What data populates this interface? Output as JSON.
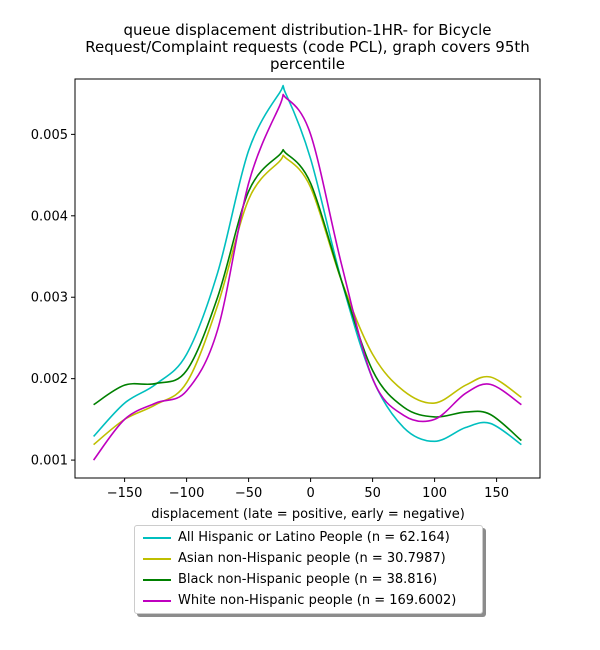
{
  "chart_data": {
    "type": "line",
    "title_lines": [
      "queue displacement distribution-1HR-  for Bicycle",
      "Request/Complaint  requests (code PCL), graph covers 95th",
      "percentile"
    ],
    "xlabel": "displacement (late = positive, early = negative)",
    "ylabel": "",
    "xlim": [
      -190,
      185
    ],
    "ylim": [
      0.00078,
      0.00568
    ],
    "x_ticks": [
      -150,
      -100,
      -50,
      0,
      50,
      100,
      150
    ],
    "x_tick_labels": [
      "−150",
      "−100",
      "−50",
      "0",
      "50",
      "100",
      "150"
    ],
    "y_ticks": [
      0.001,
      0.002,
      0.003,
      0.004,
      0.005
    ],
    "y_tick_labels": [
      "0.001",
      "0.002",
      "0.003",
      "0.004",
      "0.005"
    ],
    "grid": false,
    "legend_position": "below",
    "x": [
      -175,
      -150,
      -125,
      -100,
      -75,
      -50,
      -25,
      -20,
      0,
      25,
      50,
      75,
      100,
      125,
      145,
      170
    ],
    "series": [
      {
        "name": "All Hispanic or Latino People (n = 62.164)",
        "color": "#00bfbf",
        "values": [
          0.00129,
          0.0017,
          0.00193,
          0.0023,
          0.0033,
          0.0048,
          0.00551,
          0.0055,
          0.0047,
          0.0032,
          0.002,
          0.0014,
          0.00123,
          0.0014,
          0.00145,
          0.00119
        ]
      },
      {
        "name": "Asian non-Hispanic people (n = 30.7987)",
        "color": "#bfbf00",
        "values": [
          0.00119,
          0.0015,
          0.00168,
          0.00195,
          0.0029,
          0.0042,
          0.00467,
          0.00471,
          0.00435,
          0.0032,
          0.0023,
          0.00185,
          0.0017,
          0.00192,
          0.00202,
          0.00177
        ]
      },
      {
        "name": "Black non-Hispanic people (n = 38.816)",
        "color": "#008000",
        "values": [
          0.00168,
          0.00192,
          0.00194,
          0.0021,
          0.003,
          0.0043,
          0.00475,
          0.00477,
          0.0044,
          0.0032,
          0.0021,
          0.00165,
          0.00153,
          0.00159,
          0.00156,
          0.00124
        ]
      },
      {
        "name": "White non-Hispanic people (n = 169.6002)",
        "color": "#bf00bf",
        "values": [
          0.001,
          0.0015,
          0.0017,
          0.00185,
          0.0026,
          0.0044,
          0.00535,
          0.00545,
          0.005,
          0.0034,
          0.002,
          0.00155,
          0.0015,
          0.00182,
          0.00193,
          0.00168
        ]
      }
    ]
  }
}
